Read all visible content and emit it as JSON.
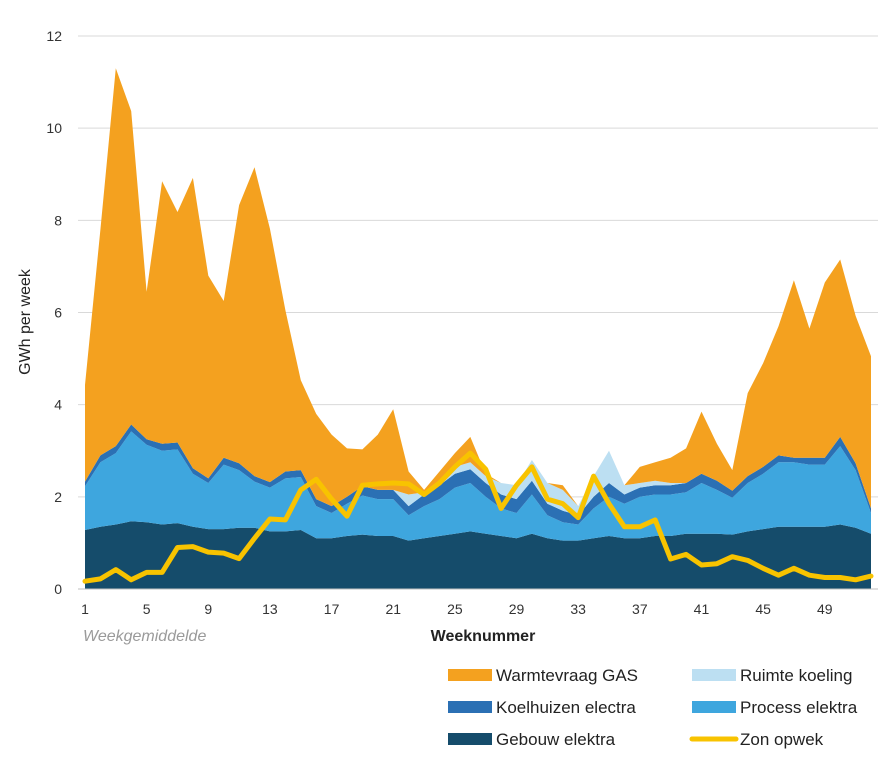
{
  "chart_data": {
    "type": "area",
    "stacked": true,
    "xlabel": "Weeknummer",
    "ylabel": "GWh per week",
    "note": "Weekgemiddelde",
    "ylim": [
      0,
      12
    ],
    "yticks": [
      0,
      2,
      4,
      6,
      8,
      10,
      12
    ],
    "xtick_labels": [
      "1",
      "5",
      "9",
      "13",
      "17",
      "21",
      "25",
      "29",
      "33",
      "37",
      "41",
      "45",
      "49"
    ],
    "x": [
      1,
      2,
      3,
      4,
      5,
      6,
      7,
      8,
      9,
      10,
      11,
      12,
      13,
      14,
      15,
      16,
      17,
      18,
      19,
      20,
      21,
      22,
      23,
      24,
      25,
      26,
      27,
      28,
      29,
      30,
      31,
      32,
      33,
      34,
      35,
      36,
      37,
      38,
      39,
      40,
      41,
      42,
      43,
      44,
      45,
      46,
      47,
      48,
      49,
      50,
      51,
      52
    ],
    "series": [
      {
        "name": "Gebouw elektra",
        "color": "#154c6b",
        "values": [
          1.28,
          1.35,
          1.4,
          1.47,
          1.45,
          1.4,
          1.43,
          1.35,
          1.3,
          1.3,
          1.33,
          1.33,
          1.25,
          1.25,
          1.28,
          1.1,
          1.1,
          1.15,
          1.18,
          1.15,
          1.15,
          1.05,
          1.1,
          1.15,
          1.2,
          1.25,
          1.2,
          1.15,
          1.1,
          1.2,
          1.1,
          1.05,
          1.05,
          1.1,
          1.15,
          1.1,
          1.1,
          1.15,
          1.15,
          1.2,
          1.2,
          1.2,
          1.18,
          1.25,
          1.3,
          1.35,
          1.35,
          1.35,
          1.35,
          1.4,
          1.33,
          1.2
        ]
      },
      {
        "name": "Process elektra",
        "color": "#3ea6de",
        "values": [
          0.95,
          1.4,
          1.55,
          1.95,
          1.68,
          1.6,
          1.6,
          1.15,
          1.0,
          1.4,
          1.25,
          1.0,
          0.95,
          1.15,
          1.15,
          0.7,
          0.55,
          0.7,
          0.85,
          0.8,
          0.8,
          0.55,
          0.7,
          0.8,
          1.0,
          1.05,
          0.8,
          0.6,
          0.55,
          0.85,
          0.5,
          0.4,
          0.35,
          0.65,
          0.85,
          0.75,
          0.9,
          0.9,
          0.9,
          0.9,
          1.1,
          0.95,
          0.8,
          1.05,
          1.2,
          1.4,
          1.4,
          1.35,
          1.35,
          1.7,
          1.25,
          0.45
        ]
      },
      {
        "name": "Koelhuizen electra",
        "color": "#2b70b4",
        "values": [
          0.1,
          0.15,
          0.15,
          0.15,
          0.12,
          0.15,
          0.15,
          0.12,
          0.1,
          0.15,
          0.15,
          0.12,
          0.12,
          0.15,
          0.15,
          0.15,
          0.15,
          0.15,
          0.2,
          0.2,
          0.2,
          0.2,
          0.25,
          0.3,
          0.3,
          0.3,
          0.3,
          0.3,
          0.3,
          0.3,
          0.25,
          0.25,
          0.2,
          0.25,
          0.3,
          0.2,
          0.2,
          0.2,
          0.2,
          0.2,
          0.2,
          0.2,
          0.15,
          0.15,
          0.15,
          0.15,
          0.1,
          0.15,
          0.15,
          0.2,
          0.15,
          0.1
        ]
      },
      {
        "name": "Ruimte koeling",
        "color": "#bcdff2",
        "values": [
          0,
          0,
          0,
          0,
          0,
          0,
          0,
          0,
          0,
          0,
          0,
          0,
          0,
          0,
          0,
          0,
          0,
          0,
          0,
          0,
          0,
          0.25,
          0.05,
          0.1,
          0.15,
          0.15,
          0.15,
          0.25,
          0.3,
          0.45,
          0.45,
          0.45,
          0.2,
          0.45,
          0.7,
          0.2,
          0.1,
          0.1,
          0.05,
          0,
          0,
          0,
          0,
          0,
          0,
          0,
          0,
          0,
          0,
          0,
          0,
          0
        ]
      },
      {
        "name": "Warmtevraag GAS",
        "color": "#f4a11f",
        "values": [
          2.1,
          4.9,
          8.2,
          6.8,
          3.2,
          5.7,
          5.0,
          6.3,
          4.4,
          3.4,
          5.6,
          6.7,
          5.5,
          3.5,
          1.95,
          1.85,
          1.55,
          1.05,
          0.8,
          1.2,
          1.75,
          0.5,
          0.05,
          0.2,
          0.3,
          0.55,
          0.05,
          0.0,
          0.0,
          0.0,
          0.0,
          0.1,
          0.0,
          0.0,
          0.0,
          0.0,
          0.35,
          0.4,
          0.55,
          0.75,
          1.35,
          0.8,
          0.45,
          1.8,
          2.25,
          2.8,
          3.85,
          2.8,
          3.8,
          3.85,
          3.2,
          3.3
        ]
      },
      {
        "name": "Zon opwek",
        "color": "#f8c300",
        "line": true,
        "values": [
          0.17,
          0.22,
          0.42,
          0.2,
          0.36,
          0.36,
          0.9,
          0.92,
          0.8,
          0.78,
          0.66,
          1.1,
          1.52,
          1.5,
          2.15,
          2.38,
          1.95,
          1.58,
          2.25,
          2.28,
          2.3,
          2.28,
          2.05,
          2.3,
          2.65,
          2.95,
          2.6,
          1.75,
          2.25,
          2.65,
          1.95,
          1.85,
          1.55,
          2.45,
          1.85,
          1.35,
          1.35,
          1.5,
          0.65,
          0.75,
          0.52,
          0.55,
          0.7,
          0.62,
          0.45,
          0.3,
          0.45,
          0.3,
          0.25,
          0.25,
          0.2,
          0.28
        ]
      }
    ],
    "legend": [
      "Warmtevraag GAS",
      "Ruimte koeling",
      "Koelhuizen electra",
      "Process elektra",
      "Gebouw elektra",
      "Zon opwek"
    ],
    "legend_position": "bottom-right"
  }
}
